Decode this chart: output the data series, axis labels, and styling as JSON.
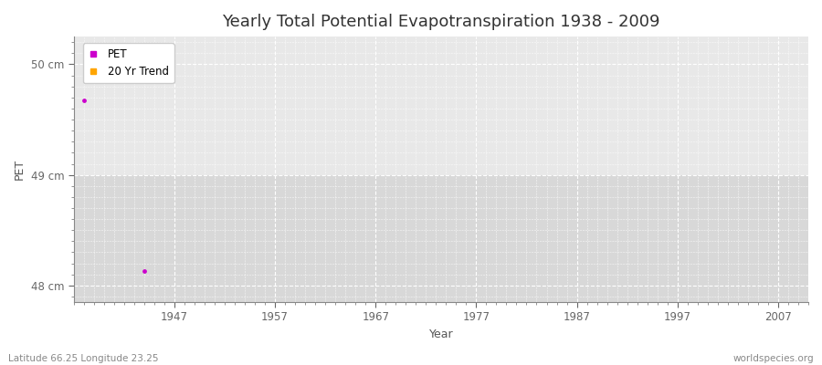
{
  "title": "Yearly Total Potential Evapotranspiration 1938 - 2009",
  "xlabel": "Year",
  "ylabel": "PET",
  "xlim_min": 1937,
  "xlim_max": 2010,
  "ylim_min": 47.85,
  "ylim_max": 50.25,
  "yticks": [
    48,
    49,
    50
  ],
  "ytick_labels": [
    "48 cm",
    "49 cm",
    "50 cm"
  ],
  "xticks": [
    1947,
    1957,
    1967,
    1977,
    1987,
    1997,
    2007
  ],
  "pet_points_x": [
    1938,
    1944
  ],
  "pet_points_y": [
    49.67,
    48.13
  ],
  "pet_color": "#cc00cc",
  "trend_color": "#ffa500",
  "bg_color": "#f5f5f5",
  "plot_bg_top": "#e8e8e8",
  "plot_bg_bottom": "#d8d8d8",
  "grid_color": "#ffffff",
  "legend_labels": [
    "PET",
    "20 Yr Trend"
  ],
  "footnote_left": "Latitude 66.25 Longitude 23.25",
  "footnote_right": "worldspecies.org",
  "title_fontsize": 13,
  "axis_label_fontsize": 9,
  "tick_fontsize": 8.5,
  "footnote_fontsize": 7.5
}
